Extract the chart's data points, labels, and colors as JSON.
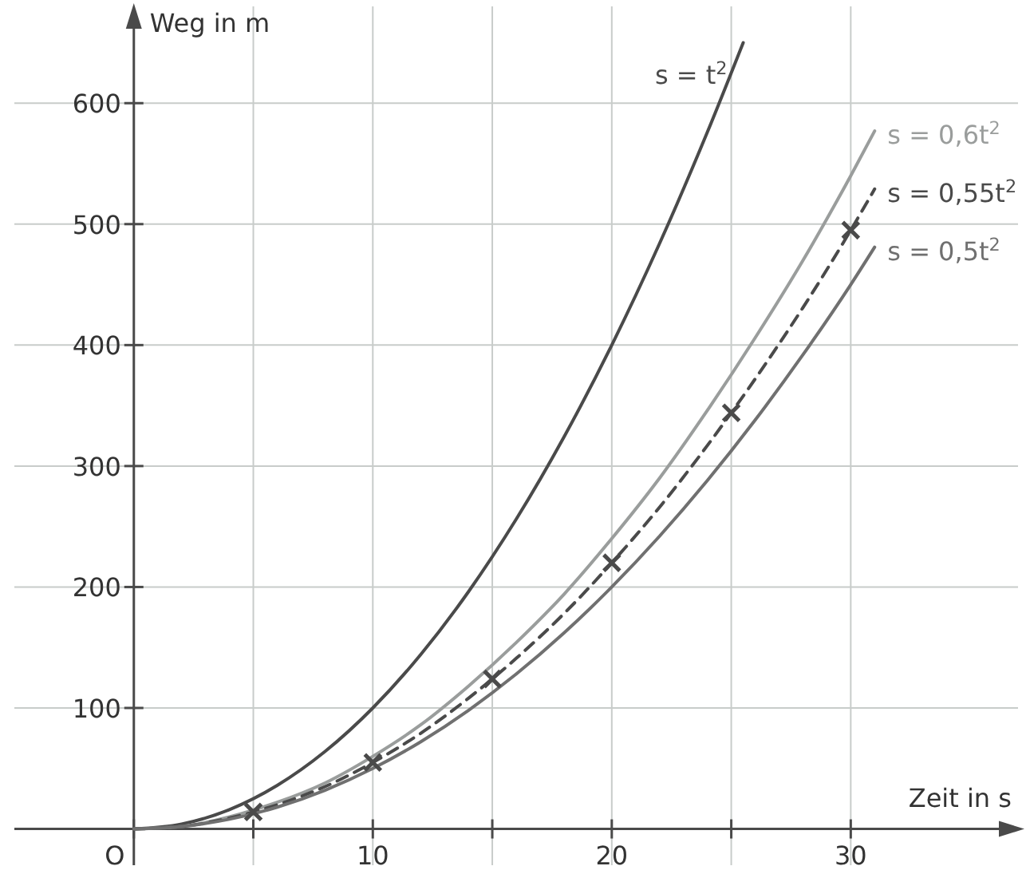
{
  "chart_data": {
    "type": "line",
    "xlabel": "Zeit in s",
    "ylabel": "Weg in m",
    "xlim": [
      -5,
      37
    ],
    "ylim": [
      -30,
      680
    ],
    "xticks": [
      {
        "value": 0,
        "label": "O"
      },
      {
        "value": 5,
        "label": null
      },
      10,
      {
        "value": 15,
        "label": null
      },
      20,
      {
        "value": 25,
        "label": null
      },
      30
    ],
    "yticks": [
      100,
      200,
      300,
      400,
      500,
      600
    ],
    "grid": true,
    "series": [
      {
        "name": "s = t$^{2}$",
        "color": "#4a4a4a",
        "x": [
          0,
          2,
          4,
          6,
          8,
          10,
          12,
          14,
          16,
          18,
          20,
          22,
          24,
          25.5
        ],
        "values": [
          0,
          4,
          16,
          36,
          64,
          100,
          144,
          196,
          256,
          324,
          400,
          484,
          576,
          650
        ]
      },
      {
        "name": "s = 0,6t$^{2}$",
        "color": "#9a9d9c",
        "x": [
          0,
          2,
          4,
          6,
          8,
          10,
          12,
          14,
          16,
          18,
          20,
          22,
          24,
          26,
          28,
          30,
          31
        ],
        "values": [
          0,
          2,
          10,
          22,
          38,
          60,
          86,
          118,
          154,
          194,
          240,
          290,
          346,
          406,
          470,
          540,
          577
        ]
      },
      {
        "name": "s = 0,55t$^{2}$",
        "color": "#4a4a4a",
        "line_style": "dashed",
        "x": [
          0,
          2,
          4,
          6,
          8,
          10,
          12,
          14,
          16,
          18,
          20,
          22,
          24,
          26,
          28,
          30,
          31
        ],
        "values": [
          0,
          2,
          9,
          20,
          35,
          55,
          79,
          108,
          141,
          178,
          220,
          266,
          317,
          372,
          431,
          495,
          529
        ]
      },
      {
        "name": "s = 0,5t$^{2}$",
        "color": "#707070",
        "x": [
          0,
          2,
          4,
          6,
          8,
          10,
          12,
          14,
          16,
          18,
          20,
          22,
          24,
          26,
          28,
          30,
          31
        ],
        "values": [
          0,
          2,
          8,
          18,
          32,
          50,
          72,
          98,
          128,
          162,
          200,
          242,
          288,
          338,
          392,
          450,
          481
        ]
      },
      {
        "type": "scatter",
        "marker": "cross",
        "color": "#4a4a4a",
        "x": [
          5,
          10,
          15,
          20,
          25,
          30
        ],
        "values": [
          14,
          55,
          124,
          220,
          344,
          495
        ]
      }
    ]
  }
}
